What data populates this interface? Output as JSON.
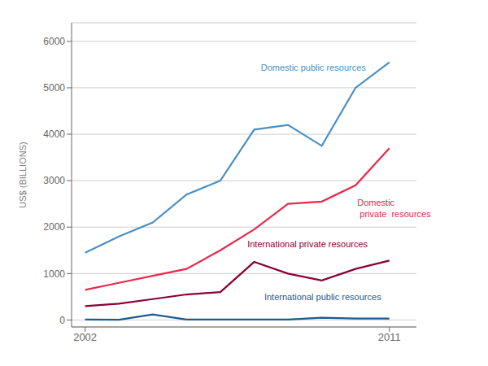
{
  "chart_data": {
    "type": "line",
    "x": [
      2002,
      2003,
      2004,
      2005,
      2006,
      2007,
      2008,
      2009,
      2010,
      2011
    ],
    "series": [
      {
        "color": "#1f5b8e",
        "values": [
          10,
          5,
          120,
          10,
          10,
          10,
          10,
          50,
          30,
          30
        ]
      },
      {
        "color": "#8b0033",
        "values": [
          300,
          350,
          450,
          550,
          600,
          1250,
          1000,
          850,
          1100,
          1280
        ]
      },
      {
        "color": "#e8294c",
        "values": [
          650,
          800,
          950,
          1100,
          1500,
          1950,
          2500,
          2550,
          2900,
          3700
        ]
      },
      {
        "color": "#4a90c4",
        "values": [
          1450,
          1800,
          2100,
          2700,
          3000,
          4100,
          4200,
          3750,
          5000,
          5550
        ]
      }
    ],
    "y_label": "US$ (BILLIONS)",
    "xlim": [
      2001.6,
      2011.8
    ],
    "xticks": [
      2002,
      2011
    ],
    "ylim": [
      -150,
      6400
    ],
    "yticks": [
      0,
      1000,
      2000,
      3000,
      4000,
      5000,
      6000
    ],
    "grid": true,
    "annotations": [
      {
        "text": "Domestic public resources",
        "x": 2007.2,
        "y": 5320,
        "color": "#4a90c4",
        "anchor": "bottom"
      },
      {
        "text": "Domestic\n private  resources",
        "x": 2010.05,
        "y": 2650,
        "color": "#e8294c",
        "anchor": "top"
      },
      {
        "text": "International private resources",
        "x": 2006.8,
        "y": 1520,
        "color": "#8b0033",
        "anchor": "bottom"
      },
      {
        "text": "International public resources",
        "x": 2007.3,
        "y": 370,
        "color": "#1f5b8e",
        "anchor": "bottom"
      }
    ]
  }
}
